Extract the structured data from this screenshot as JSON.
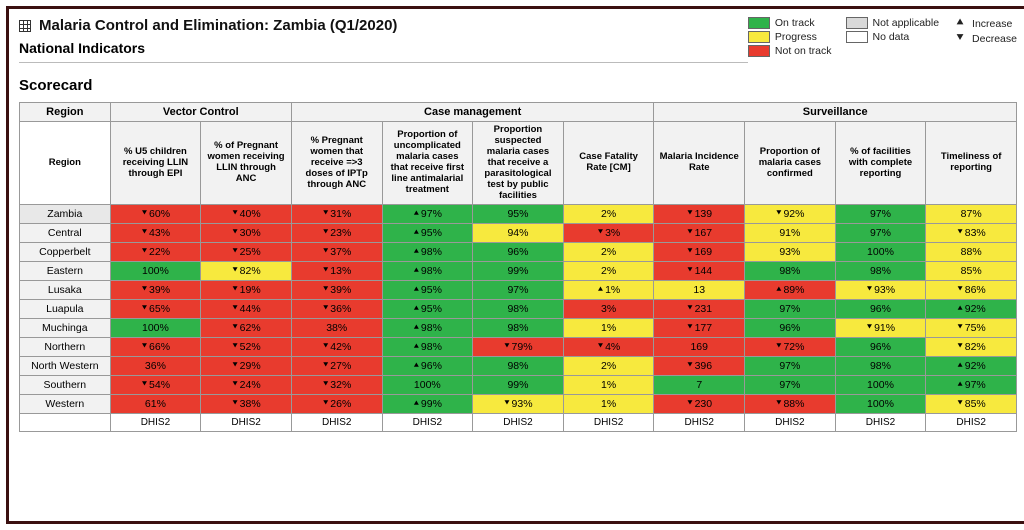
{
  "colors": {
    "on_track": "#2fb34a",
    "progress": "#f7e93e",
    "not_on_track": "#e83b2e",
    "not_applicable": "#d9d9d9",
    "no_data": "#ffffff",
    "border": "#999999",
    "frame": "#3b1010"
  },
  "header": {
    "title": "Malaria Control and Elimination: Zambia (Q1/2020)",
    "subtitle": "National Indicators"
  },
  "legend": {
    "col1": [
      {
        "color_key": "on_track",
        "label": "On track"
      },
      {
        "color_key": "progress",
        "label": "Progress"
      },
      {
        "color_key": "not_on_track",
        "label": "Not on track"
      }
    ],
    "col2": [
      {
        "color_key": "not_applicable",
        "label": "Not applicable"
      },
      {
        "color_key": "no_data",
        "label": "No data"
      }
    ],
    "col3": [
      {
        "arrow": "up",
        "label": "Increase"
      },
      {
        "arrow": "down",
        "label": "Decrease"
      }
    ]
  },
  "section_title": "Scorecard",
  "table": {
    "region_header_top": "Region",
    "region_header_sub": "Region",
    "groups": [
      {
        "label": "Vector Control",
        "span": 2
      },
      {
        "label": "Case management",
        "span": 4
      },
      {
        "label": "Surveillance",
        "span": 4
      }
    ],
    "columns": [
      "% U5 children receiving LLIN through EPI",
      "% of Pregnant women receiving LLIN through ANC",
      "% Pregnant women that receive =>3 doses of IPTp through ANC",
      "Proportion of uncomplicated malaria cases that receive first line antimalarial treatment",
      "Proportion suspected malaria cases that receive a parasitological test by public facilities",
      "Case Fatality Rate [CM]",
      "Malaria Incidence Rate",
      "Proportion of malaria cases confirmed",
      "% of facilities with complete reporting",
      "Timeliness of reporting"
    ],
    "rows": [
      {
        "region": "Zambia",
        "national": true,
        "cells": [
          {
            "v": "60%",
            "a": "down",
            "s": "not_on_track"
          },
          {
            "v": "40%",
            "a": "down",
            "s": "not_on_track"
          },
          {
            "v": "31%",
            "a": "down",
            "s": "not_on_track"
          },
          {
            "v": "97%",
            "a": "up",
            "s": "on_track"
          },
          {
            "v": "95%",
            "a": null,
            "s": "on_track"
          },
          {
            "v": "2%",
            "a": null,
            "s": "progress"
          },
          {
            "v": "139",
            "a": "down",
            "s": "not_on_track"
          },
          {
            "v": "92%",
            "a": "down",
            "s": "progress"
          },
          {
            "v": "97%",
            "a": null,
            "s": "on_track"
          },
          {
            "v": "87%",
            "a": null,
            "s": "progress"
          }
        ]
      },
      {
        "region": "Central",
        "cells": [
          {
            "v": "43%",
            "a": "down",
            "s": "not_on_track"
          },
          {
            "v": "30%",
            "a": "down",
            "s": "not_on_track"
          },
          {
            "v": "23%",
            "a": "down",
            "s": "not_on_track"
          },
          {
            "v": "95%",
            "a": "up",
            "s": "on_track"
          },
          {
            "v": "94%",
            "a": null,
            "s": "progress"
          },
          {
            "v": "3%",
            "a": "down",
            "s": "not_on_track"
          },
          {
            "v": "167",
            "a": "down",
            "s": "not_on_track"
          },
          {
            "v": "91%",
            "a": null,
            "s": "progress"
          },
          {
            "v": "97%",
            "a": null,
            "s": "on_track"
          },
          {
            "v": "83%",
            "a": "down",
            "s": "progress"
          }
        ]
      },
      {
        "region": "Copperbelt",
        "cells": [
          {
            "v": "22%",
            "a": "down",
            "s": "not_on_track"
          },
          {
            "v": "25%",
            "a": "down",
            "s": "not_on_track"
          },
          {
            "v": "37%",
            "a": "down",
            "s": "not_on_track"
          },
          {
            "v": "98%",
            "a": "up",
            "s": "on_track"
          },
          {
            "v": "96%",
            "a": null,
            "s": "on_track"
          },
          {
            "v": "2%",
            "a": null,
            "s": "progress"
          },
          {
            "v": "169",
            "a": "down",
            "s": "not_on_track"
          },
          {
            "v": "93%",
            "a": null,
            "s": "progress"
          },
          {
            "v": "100%",
            "a": null,
            "s": "on_track"
          },
          {
            "v": "88%",
            "a": null,
            "s": "progress"
          }
        ]
      },
      {
        "region": "Eastern",
        "cells": [
          {
            "v": "100%",
            "a": null,
            "s": "on_track"
          },
          {
            "v": "82%",
            "a": "down",
            "s": "progress"
          },
          {
            "v": "13%",
            "a": "down",
            "s": "not_on_track"
          },
          {
            "v": "98%",
            "a": "up",
            "s": "on_track"
          },
          {
            "v": "99%",
            "a": null,
            "s": "on_track"
          },
          {
            "v": "2%",
            "a": null,
            "s": "progress"
          },
          {
            "v": "144",
            "a": "down",
            "s": "not_on_track"
          },
          {
            "v": "98%",
            "a": null,
            "s": "on_track"
          },
          {
            "v": "98%",
            "a": null,
            "s": "on_track"
          },
          {
            "v": "85%",
            "a": null,
            "s": "progress"
          }
        ]
      },
      {
        "region": "Lusaka",
        "cells": [
          {
            "v": "39%",
            "a": "down",
            "s": "not_on_track"
          },
          {
            "v": "19%",
            "a": "down",
            "s": "not_on_track"
          },
          {
            "v": "39%",
            "a": "down",
            "s": "not_on_track"
          },
          {
            "v": "95%",
            "a": "up",
            "s": "on_track"
          },
          {
            "v": "97%",
            "a": null,
            "s": "on_track"
          },
          {
            "v": "1%",
            "a": "up",
            "s": "progress"
          },
          {
            "v": "13",
            "a": null,
            "s": "progress"
          },
          {
            "v": "89%",
            "a": "up",
            "s": "not_on_track"
          },
          {
            "v": "93%",
            "a": "down",
            "s": "progress"
          },
          {
            "v": "86%",
            "a": "down",
            "s": "progress"
          }
        ]
      },
      {
        "region": "Luapula",
        "cells": [
          {
            "v": "65%",
            "a": "down",
            "s": "not_on_track"
          },
          {
            "v": "44%",
            "a": "down",
            "s": "not_on_track"
          },
          {
            "v": "36%",
            "a": "down",
            "s": "not_on_track"
          },
          {
            "v": "95%",
            "a": "up",
            "s": "on_track"
          },
          {
            "v": "98%",
            "a": null,
            "s": "on_track"
          },
          {
            "v": "3%",
            "a": null,
            "s": "not_on_track"
          },
          {
            "v": "231",
            "a": "down",
            "s": "not_on_track"
          },
          {
            "v": "97%",
            "a": null,
            "s": "on_track"
          },
          {
            "v": "96%",
            "a": null,
            "s": "on_track"
          },
          {
            "v": "92%",
            "a": "up",
            "s": "on_track"
          }
        ]
      },
      {
        "region": "Muchinga",
        "cells": [
          {
            "v": "100%",
            "a": null,
            "s": "on_track"
          },
          {
            "v": "62%",
            "a": "down",
            "s": "not_on_track"
          },
          {
            "v": "38%",
            "a": null,
            "s": "not_on_track"
          },
          {
            "v": "98%",
            "a": "up",
            "s": "on_track"
          },
          {
            "v": "98%",
            "a": null,
            "s": "on_track"
          },
          {
            "v": "1%",
            "a": null,
            "s": "progress"
          },
          {
            "v": "177",
            "a": "down",
            "s": "not_on_track"
          },
          {
            "v": "96%",
            "a": null,
            "s": "on_track"
          },
          {
            "v": "91%",
            "a": "down",
            "s": "progress"
          },
          {
            "v": "75%",
            "a": "down",
            "s": "progress"
          }
        ]
      },
      {
        "region": "Northern",
        "cells": [
          {
            "v": "66%",
            "a": "down",
            "s": "not_on_track"
          },
          {
            "v": "52%",
            "a": "down",
            "s": "not_on_track"
          },
          {
            "v": "42%",
            "a": "down",
            "s": "not_on_track"
          },
          {
            "v": "98%",
            "a": "up",
            "s": "on_track"
          },
          {
            "v": "79%",
            "a": "down",
            "s": "not_on_track"
          },
          {
            "v": "4%",
            "a": "down",
            "s": "not_on_track"
          },
          {
            "v": "169",
            "a": null,
            "s": "not_on_track"
          },
          {
            "v": "72%",
            "a": "down",
            "s": "not_on_track"
          },
          {
            "v": "96%",
            "a": null,
            "s": "on_track"
          },
          {
            "v": "82%",
            "a": "down",
            "s": "progress"
          }
        ]
      },
      {
        "region": "North Western",
        "cells": [
          {
            "v": "36%",
            "a": null,
            "s": "not_on_track"
          },
          {
            "v": "29%",
            "a": "down",
            "s": "not_on_track"
          },
          {
            "v": "27%",
            "a": "down",
            "s": "not_on_track"
          },
          {
            "v": "96%",
            "a": "up",
            "s": "on_track"
          },
          {
            "v": "98%",
            "a": null,
            "s": "on_track"
          },
          {
            "v": "2%",
            "a": null,
            "s": "progress"
          },
          {
            "v": "396",
            "a": "down",
            "s": "not_on_track"
          },
          {
            "v": "97%",
            "a": null,
            "s": "on_track"
          },
          {
            "v": "98%",
            "a": null,
            "s": "on_track"
          },
          {
            "v": "92%",
            "a": "up",
            "s": "on_track"
          }
        ]
      },
      {
        "region": "Southern",
        "cells": [
          {
            "v": "54%",
            "a": "down",
            "s": "not_on_track"
          },
          {
            "v": "24%",
            "a": "down",
            "s": "not_on_track"
          },
          {
            "v": "32%",
            "a": "down",
            "s": "not_on_track"
          },
          {
            "v": "100%",
            "a": null,
            "s": "on_track"
          },
          {
            "v": "99%",
            "a": null,
            "s": "on_track"
          },
          {
            "v": "1%",
            "a": null,
            "s": "progress"
          },
          {
            "v": "7",
            "a": null,
            "s": "on_track"
          },
          {
            "v": "97%",
            "a": null,
            "s": "on_track"
          },
          {
            "v": "100%",
            "a": null,
            "s": "on_track"
          },
          {
            "v": "97%",
            "a": "up",
            "s": "on_track"
          }
        ]
      },
      {
        "region": "Western",
        "cells": [
          {
            "v": "61%",
            "a": null,
            "s": "not_on_track"
          },
          {
            "v": "38%",
            "a": "down",
            "s": "not_on_track"
          },
          {
            "v": "26%",
            "a": "down",
            "s": "not_on_track"
          },
          {
            "v": "99%",
            "a": "up",
            "s": "on_track"
          },
          {
            "v": "93%",
            "a": "down",
            "s": "progress"
          },
          {
            "v": "1%",
            "a": null,
            "s": "progress"
          },
          {
            "v": "230",
            "a": "down",
            "s": "not_on_track"
          },
          {
            "v": "88%",
            "a": "down",
            "s": "not_on_track"
          },
          {
            "v": "100%",
            "a": null,
            "s": "on_track"
          },
          {
            "v": "85%",
            "a": "down",
            "s": "progress"
          }
        ]
      }
    ],
    "footer_label": "DHIS2"
  }
}
